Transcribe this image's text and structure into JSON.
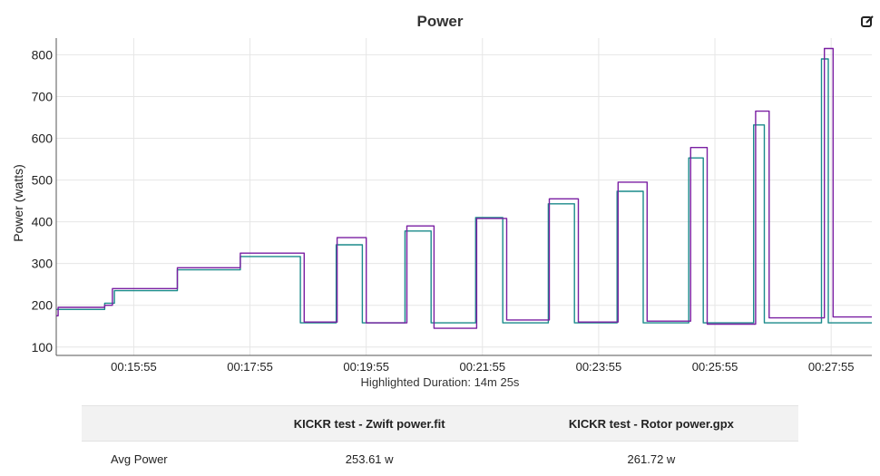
{
  "chart_data": {
    "type": "line",
    "title": "Power",
    "ylabel": "Power (watts)",
    "xlabel": "",
    "ylim": [
      80,
      840
    ],
    "xlim": [
      "00:14:35",
      "00:28:37"
    ],
    "yticks": [
      100,
      200,
      300,
      400,
      500,
      600,
      700,
      800
    ],
    "xticks": [
      "00:15:55",
      "00:17:55",
      "00:19:55",
      "00:21:55",
      "00:23:55",
      "00:25:55",
      "00:27:55"
    ],
    "grid": true,
    "series": [
      {
        "name": "KICKR test - Zwift power.fit",
        "color": "#1a8a8a",
        "steps": [
          {
            "t": "00:14:35",
            "v": 190
          },
          {
            "t": "00:15:25",
            "v": 205
          },
          {
            "t": "00:15:35",
            "v": 235
          },
          {
            "t": "00:16:40",
            "v": 285
          },
          {
            "t": "00:17:45",
            "v": 317
          },
          {
            "t": "00:18:47",
            "v": 158
          },
          {
            "t": "00:19:24",
            "v": 345
          },
          {
            "t": "00:19:51",
            "v": 158
          },
          {
            "t": "00:20:35",
            "v": 378
          },
          {
            "t": "00:21:02",
            "v": 158
          },
          {
            "t": "00:21:48",
            "v": 410
          },
          {
            "t": "00:22:16",
            "v": 158
          },
          {
            "t": "00:23:03",
            "v": 443
          },
          {
            "t": "00:23:30",
            "v": 158
          },
          {
            "t": "00:24:14",
            "v": 473
          },
          {
            "t": "00:24:41",
            "v": 158
          },
          {
            "t": "00:25:28",
            "v": 553
          },
          {
            "t": "00:25:43",
            "v": 158
          },
          {
            "t": "00:26:35",
            "v": 632
          },
          {
            "t": "00:26:46",
            "v": 158
          },
          {
            "t": "00:27:45",
            "v": 790
          },
          {
            "t": "00:27:52",
            "v": 158
          },
          {
            "t": "00:28:37",
            "v": 158
          }
        ]
      },
      {
        "name": "KICKR test - Rotor power.gpx",
        "color": "#7a1fa2",
        "steps": [
          {
            "t": "00:14:35",
            "v": 175
          },
          {
            "t": "00:14:37",
            "v": 195
          },
          {
            "t": "00:15:25",
            "v": 200
          },
          {
            "t": "00:15:33",
            "v": 240
          },
          {
            "t": "00:16:40",
            "v": 290
          },
          {
            "t": "00:17:45",
            "v": 325
          },
          {
            "t": "00:18:51",
            "v": 160
          },
          {
            "t": "00:19:25",
            "v": 362
          },
          {
            "t": "00:19:55",
            "v": 158
          },
          {
            "t": "00:20:37",
            "v": 390
          },
          {
            "t": "00:21:05",
            "v": 145
          },
          {
            "t": "00:21:49",
            "v": 408
          },
          {
            "t": "00:22:20",
            "v": 165
          },
          {
            "t": "00:23:04",
            "v": 455
          },
          {
            "t": "00:23:34",
            "v": 160
          },
          {
            "t": "00:24:15",
            "v": 495
          },
          {
            "t": "00:24:45",
            "v": 162
          },
          {
            "t": "00:25:30",
            "v": 578
          },
          {
            "t": "00:25:47",
            "v": 155
          },
          {
            "t": "00:26:37",
            "v": 665
          },
          {
            "t": "00:26:51",
            "v": 170
          },
          {
            "t": "00:27:48",
            "v": 815
          },
          {
            "t": "00:27:57",
            "v": 172
          },
          {
            "t": "00:28:37",
            "v": 172
          }
        ]
      }
    ],
    "annotation": "Highlighted Duration: 14m 25s"
  },
  "stats_table": {
    "columns": [
      "",
      "KICKR test - Zwift power.fit",
      "KICKR test - Rotor power.gpx"
    ],
    "rows": [
      {
        "label": "Avg Power",
        "values": [
          "253.61 w",
          "261.72 w"
        ]
      }
    ]
  },
  "icons": {
    "edit": "edit-icon"
  }
}
